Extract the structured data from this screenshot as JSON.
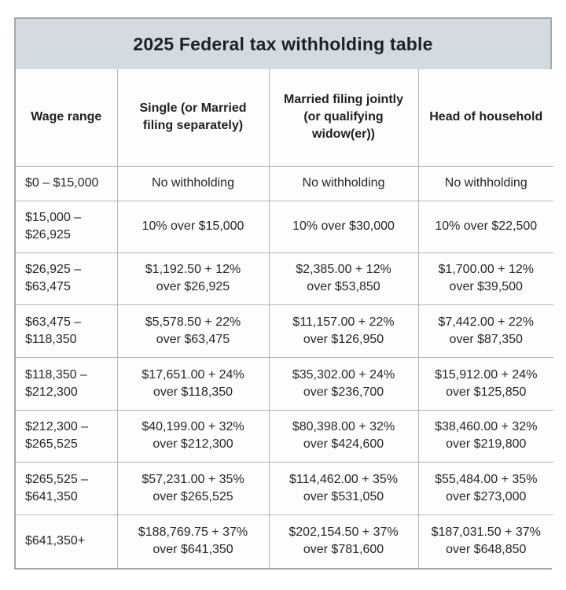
{
  "title": "2025 Federal tax withholding table",
  "colors": {
    "title_band_bg": "#d3dbe1",
    "border": "#b2b7ba",
    "outer_border": "#a3a8ab",
    "cell_bg": "#fdfdfd",
    "text": "#24272a"
  },
  "table": {
    "header": [
      {
        "lines": [
          "Wage range"
        ]
      },
      {
        "lines": [
          "Single (or Married",
          "filing separately)"
        ]
      },
      {
        "lines": [
          "Married filing jointly",
          "(or qualifying",
          "widow(er))"
        ]
      },
      {
        "lines": [
          "Head of household"
        ]
      }
    ],
    "rows": [
      {
        "cells": [
          [
            "$0 – $15,000"
          ],
          [
            "No withholding"
          ],
          [
            "No withholding"
          ],
          [
            "No withholding"
          ]
        ]
      },
      {
        "cells": [
          [
            "$15,000 –",
            "$26,925"
          ],
          [
            "10% over $15,000"
          ],
          [
            "10% over $30,000"
          ],
          [
            "10% over $22,500"
          ]
        ]
      },
      {
        "cells": [
          [
            "$26,925 –",
            "$63,475"
          ],
          [
            "$1,192.50 + 12%",
            "over $26,925"
          ],
          [
            "$2,385.00 + 12%",
            "over $53,850"
          ],
          [
            "$1,700.00 + 12%",
            "over $39,500"
          ]
        ]
      },
      {
        "cells": [
          [
            "$63,475 –",
            "$118,350"
          ],
          [
            "$5,578.50 + 22%",
            "over $63,475"
          ],
          [
            "$11,157.00 + 22%",
            "over $126,950"
          ],
          [
            "$7,442.00 + 22%",
            "over $87,350"
          ]
        ]
      },
      {
        "cells": [
          [
            "$118,350 –",
            "$212,300"
          ],
          [
            "$17,651.00 + 24%",
            "over $118,350"
          ],
          [
            "$35,302.00 + 24%",
            "over $236,700"
          ],
          [
            "$15,912.00 + 24%",
            "over $125,850"
          ]
        ]
      },
      {
        "cells": [
          [
            "$212,300 –",
            "$265,525"
          ],
          [
            "$40,199.00 + 32%",
            "over $212,300"
          ],
          [
            "$80,398.00 + 32%",
            "over $424,600"
          ],
          [
            "$38,460.00 + 32%",
            "over $219,800"
          ]
        ]
      },
      {
        "cells": [
          [
            "$265,525 –",
            "$641,350"
          ],
          [
            "$57,231.00 + 35%",
            "over $265,525"
          ],
          [
            "$114,462.00 + 35%",
            "over $531,050"
          ],
          [
            "$55,484.00 + 35%",
            "over $273,000"
          ]
        ]
      },
      {
        "cells": [
          [
            "$641,350+"
          ],
          [
            "$188,769.75 + 37%",
            "over $641,350"
          ],
          [
            "$202,154.50 + 37%",
            "over $781,600"
          ],
          [
            "$187,031.50 + 37%",
            "over $648,850"
          ]
        ]
      }
    ]
  },
  "chart_data": {
    "type": "table",
    "title": "2025 Federal tax withholding table",
    "columns": [
      "Wage range",
      "Single (or Married filing separately)",
      "Married filing jointly (or qualifying widow(er))",
      "Head of household"
    ],
    "rows": [
      [
        "$0 – $15,000",
        "No withholding",
        "No withholding",
        "No withholding"
      ],
      [
        "$15,000 – $26,925",
        "10% over $15,000",
        "10% over $30,000",
        "10% over $22,500"
      ],
      [
        "$26,925 – $63,475",
        "$1,192.50 + 12% over $26,925",
        "$2,385.00 + 12% over $53,850",
        "$1,700.00 + 12% over $39,500"
      ],
      [
        "$63,475 – $118,350",
        "$5,578.50 + 22% over $63,475",
        "$11,157.00 + 22% over $126,950",
        "$7,442.00 + 22% over $87,350"
      ],
      [
        "$118,350 – $212,300",
        "$17,651.00 + 24% over $118,350",
        "$35,302.00 + 24% over $236,700",
        "$15,912.00 + 24% over $125,850"
      ],
      [
        "$212,300 – $265,525",
        "$40,199.00 + 32% over $212,300",
        "$80,398.00 + 32% over $424,600",
        "$38,460.00 + 32% over $219,800"
      ],
      [
        "$265,525 – $641,350",
        "$57,231.00 + 35% over $265,525",
        "$114,462.00 + 35% over $531,050",
        "$55,484.00 + 35% over $273,000"
      ],
      [
        "$641,350+",
        "$188,769.75 + 37% over $641,350",
        "$202,154.50 + 37% over $781,600",
        "$187,031.50 + 37% over $648,850"
      ]
    ]
  }
}
